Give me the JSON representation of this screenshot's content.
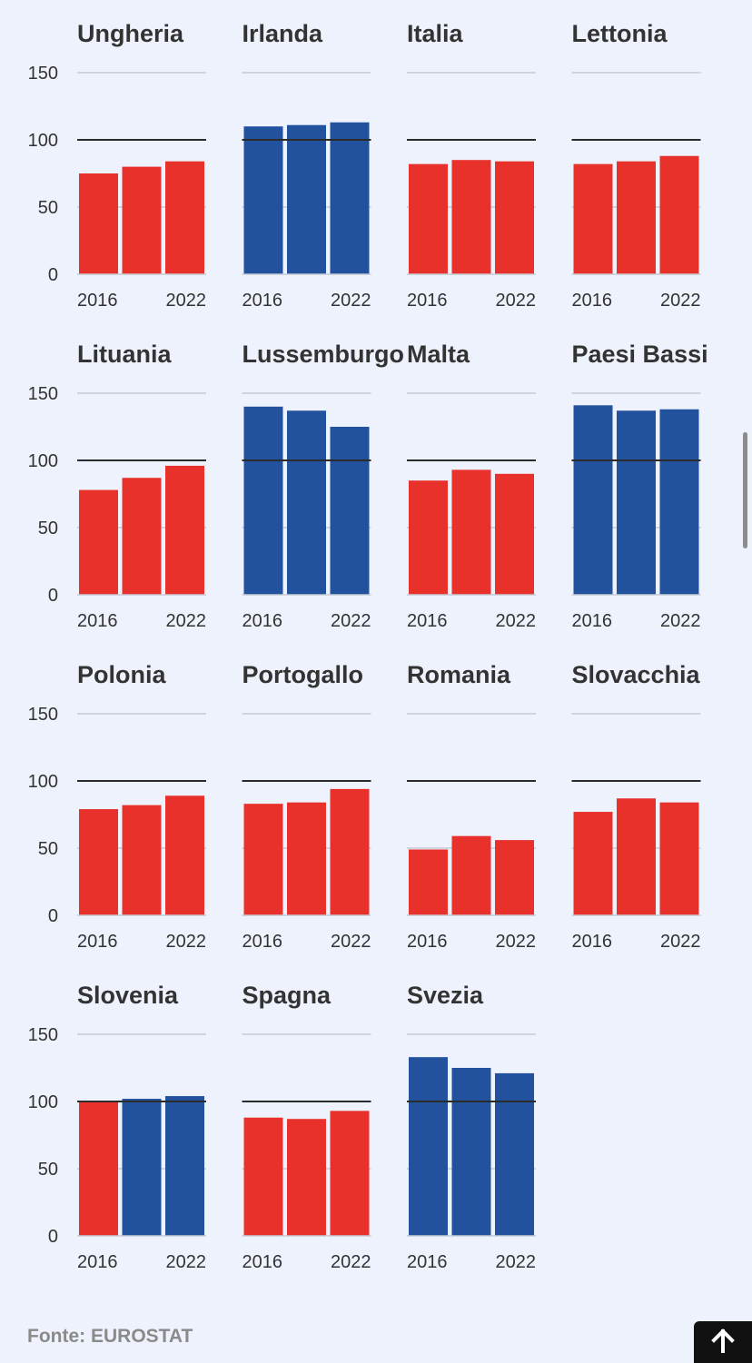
{
  "chart_data": [
    {
      "type": "bar",
      "title": "Ungheria",
      "categories": [
        "2016",
        "",
        "2022"
      ],
      "values": [
        75,
        80,
        84
      ],
      "bar_colors": [
        "#e8312b",
        "#e8312b",
        "#e8312b"
      ],
      "ylim": [
        0,
        150
      ],
      "yticks": [
        0,
        50,
        100,
        150
      ],
      "reference_line": 100,
      "xtick_labels": [
        "2016",
        "2022"
      ]
    },
    {
      "type": "bar",
      "title": "Irlanda",
      "categories": [
        "2016",
        "",
        "2022"
      ],
      "values": [
        110,
        111,
        113
      ],
      "bar_colors": [
        "#22529e",
        "#22529e",
        "#22529e"
      ],
      "ylim": [
        0,
        150
      ],
      "yticks": [
        0,
        50,
        100,
        150
      ],
      "reference_line": 100,
      "xtick_labels": [
        "2016",
        "2022"
      ]
    },
    {
      "type": "bar",
      "title": "Italia",
      "categories": [
        "2016",
        "",
        "2022"
      ],
      "values": [
        82,
        85,
        84
      ],
      "bar_colors": [
        "#e8312b",
        "#e8312b",
        "#e8312b"
      ],
      "ylim": [
        0,
        150
      ],
      "yticks": [
        0,
        50,
        100,
        150
      ],
      "reference_line": 100,
      "xtick_labels": [
        "2016",
        "2022"
      ]
    },
    {
      "type": "bar",
      "title": "Lettonia",
      "categories": [
        "2016",
        "",
        "2022"
      ],
      "values": [
        82,
        84,
        88
      ],
      "bar_colors": [
        "#e8312b",
        "#e8312b",
        "#e8312b"
      ],
      "ylim": [
        0,
        150
      ],
      "yticks": [
        0,
        50,
        100,
        150
      ],
      "reference_line": 100,
      "xtick_labels": [
        "2016",
        "2022"
      ]
    },
    {
      "type": "bar",
      "title": "Lituania",
      "categories": [
        "2016",
        "",
        "2022"
      ],
      "values": [
        78,
        87,
        96
      ],
      "bar_colors": [
        "#e8312b",
        "#e8312b",
        "#e8312b"
      ],
      "ylim": [
        0,
        150
      ],
      "yticks": [
        0,
        50,
        100,
        150
      ],
      "reference_line": 100,
      "xtick_labels": [
        "2016",
        "2022"
      ]
    },
    {
      "type": "bar",
      "title": "Lussemburgo",
      "categories": [
        "2016",
        "",
        "2022"
      ],
      "values": [
        140,
        137,
        125
      ],
      "bar_colors": [
        "#22529e",
        "#22529e",
        "#22529e"
      ],
      "ylim": [
        0,
        150
      ],
      "yticks": [
        0,
        50,
        100,
        150
      ],
      "reference_line": 100,
      "xtick_labels": [
        "2016",
        "2022"
      ]
    },
    {
      "type": "bar",
      "title": "Malta",
      "categories": [
        "2016",
        "",
        "2022"
      ],
      "values": [
        85,
        93,
        90
      ],
      "bar_colors": [
        "#e8312b",
        "#e8312b",
        "#e8312b"
      ],
      "ylim": [
        0,
        150
      ],
      "yticks": [
        0,
        50,
        100,
        150
      ],
      "reference_line": 100,
      "xtick_labels": [
        "2016",
        "2022"
      ]
    },
    {
      "type": "bar",
      "title": "Paesi Bassi",
      "categories": [
        "2016",
        "",
        "2022"
      ],
      "values": [
        141,
        137,
        138
      ],
      "bar_colors": [
        "#22529e",
        "#22529e",
        "#22529e"
      ],
      "ylim": [
        0,
        150
      ],
      "yticks": [
        0,
        50,
        100,
        150
      ],
      "reference_line": 100,
      "xtick_labels": [
        "2016",
        "2022"
      ]
    },
    {
      "type": "bar",
      "title": "Polonia",
      "categories": [
        "2016",
        "",
        "2022"
      ],
      "values": [
        79,
        82,
        89
      ],
      "bar_colors": [
        "#e8312b",
        "#e8312b",
        "#e8312b"
      ],
      "ylim": [
        0,
        150
      ],
      "yticks": [
        0,
        50,
        100,
        150
      ],
      "reference_line": 100,
      "xtick_labels": [
        "2016",
        "2022"
      ]
    },
    {
      "type": "bar",
      "title": "Portogallo",
      "categories": [
        "2016",
        "",
        "2022"
      ],
      "values": [
        83,
        84,
        94
      ],
      "bar_colors": [
        "#e8312b",
        "#e8312b",
        "#e8312b"
      ],
      "ylim": [
        0,
        150
      ],
      "yticks": [
        0,
        50,
        100,
        150
      ],
      "reference_line": 100,
      "xtick_labels": [
        "2016",
        "2022"
      ]
    },
    {
      "type": "bar",
      "title": "Romania",
      "categories": [
        "2016",
        "",
        "2022"
      ],
      "values": [
        49,
        59,
        56
      ],
      "bar_colors": [
        "#e8312b",
        "#e8312b",
        "#e8312b"
      ],
      "ylim": [
        0,
        150
      ],
      "yticks": [
        0,
        50,
        100,
        150
      ],
      "reference_line": 100,
      "xtick_labels": [
        "2016",
        "2022"
      ]
    },
    {
      "type": "bar",
      "title": "Slovacchia",
      "categories": [
        "2016",
        "",
        "2022"
      ],
      "values": [
        77,
        87,
        84
      ],
      "bar_colors": [
        "#e8312b",
        "#e8312b",
        "#e8312b"
      ],
      "ylim": [
        0,
        150
      ],
      "yticks": [
        0,
        50,
        100,
        150
      ],
      "reference_line": 100,
      "xtick_labels": [
        "2016",
        "2022"
      ]
    },
    {
      "type": "bar",
      "title": "Slovenia",
      "categories": [
        "2016",
        "",
        "2022"
      ],
      "values": [
        100,
        102,
        104
      ],
      "bar_colors": [
        "#e8312b",
        "#22529e",
        "#22529e"
      ],
      "ylim": [
        0,
        150
      ],
      "yticks": [
        0,
        50,
        100,
        150
      ],
      "reference_line": 100,
      "xtick_labels": [
        "2016",
        "2022"
      ]
    },
    {
      "type": "bar",
      "title": "Spagna",
      "categories": [
        "2016",
        "",
        "2022"
      ],
      "values": [
        88,
        87,
        93
      ],
      "bar_colors": [
        "#e8312b",
        "#e8312b",
        "#e8312b"
      ],
      "ylim": [
        0,
        150
      ],
      "yticks": [
        0,
        50,
        100,
        150
      ],
      "reference_line": 100,
      "xtick_labels": [
        "2016",
        "2022"
      ]
    },
    {
      "type": "bar",
      "title": "Svezia",
      "categories": [
        "2016",
        "",
        "2022"
      ],
      "values": [
        133,
        125,
        121
      ],
      "bar_colors": [
        "#22529e",
        "#22529e",
        "#22529e"
      ],
      "ylim": [
        0,
        150
      ],
      "yticks": [
        0,
        50,
        100,
        150
      ],
      "reference_line": 100,
      "xtick_labels": [
        "2016",
        "2022"
      ]
    }
  ],
  "source_text": "Fonte: EUROSTAT",
  "colors": {
    "below": "#e8312b",
    "above": "#22529e",
    "background": "#eef2fc"
  },
  "icons": {
    "back_to_top": "arrow-up-icon"
  }
}
